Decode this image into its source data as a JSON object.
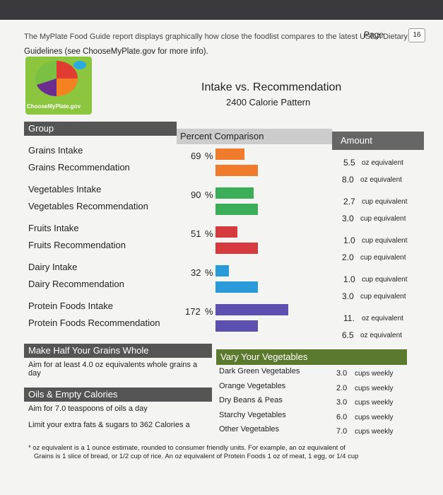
{
  "header": {
    "page_label": "Page",
    "page_number": "16",
    "intro": [
      "The MyPlate Food Guide report displays graphically how close the foodlist compares to the latest USDA Dietary",
      "Guidelines (see ChooseMyPlate.gov for more info)."
    ],
    "logo_text": "ChooseMyPlate.gov"
  },
  "report": {
    "title": "Intake vs. Recommendation",
    "subtitle": "2400 Calorie Pattern"
  },
  "table": {
    "columns": [
      "Group",
      "Percent Comparison",
      "Amount"
    ],
    "percent_unit": "%",
    "groups": [
      {
        "intake_label": "Grains Intake",
        "rec_label": "Grains Recommendation",
        "percent": 69,
        "intake_amount": "5.5",
        "intake_unit": "oz equivalent",
        "rec_amount": "8.0",
        "rec_unit": "oz equivalent",
        "color": "#f07b2c"
      },
      {
        "intake_label": "Vegetables Intake",
        "rec_label": "Vegetables Recommendation",
        "percent": 90,
        "intake_amount": "2.7",
        "intake_unit": "cup equivalent",
        "rec_amount": "3.0",
        "rec_unit": "cup equivalent",
        "color": "#3cae5a"
      },
      {
        "intake_label": "Fruits Intake",
        "rec_label": "Fruits Recommendation",
        "percent": 51,
        "intake_amount": "1.0",
        "intake_unit": "cup equivalent",
        "rec_amount": "2.0",
        "rec_unit": "cup equivalent",
        "color": "#d53a3f"
      },
      {
        "intake_label": "Dairy Intake",
        "rec_label": "Dairy Recommendation",
        "percent": 32,
        "intake_amount": "1.0",
        "intake_unit": "cup equivalent",
        "rec_amount": "3.0",
        "rec_unit": "cup equivalent",
        "color": "#2a9bd8"
      },
      {
        "intake_label": "Protein Foods Intake",
        "rec_label": "Protein Foods Recommendation",
        "percent": 172,
        "intake_amount": "11.",
        "intake_unit": "oz equivalent",
        "rec_amount": "6.5",
        "rec_unit": "oz equivalent",
        "color": "#5d4fb0"
      }
    ]
  },
  "grains_box": {
    "title": "Make Half Your Grains Whole",
    "text": "Aim for at least 4.0 oz equivalents whole grains a day"
  },
  "oils_box": {
    "title": "Oils & Empty Calories",
    "lines": [
      "Aim for 7.0 teaspoons of oils a day",
      "Limit your extra fats & sugars to 362 Calories a"
    ]
  },
  "veg_box": {
    "title": "Vary Your Vegetables",
    "unit": "cups weekly",
    "items": [
      {
        "name": "Dark Green Vegetables",
        "amount": "3.0"
      },
      {
        "name": "Orange Vegetables",
        "amount": "2.0"
      },
      {
        "name": "Dry Beans & Peas",
        "amount": "3.0"
      },
      {
        "name": "Starchy Vegetables",
        "amount": "6.0"
      },
      {
        "name": "Other Vegetables",
        "amount": "7.0"
      }
    ]
  },
  "footnote": [
    "* oz equivalent is a 1 ounce estimate, rounded to consumer friendly units. For example, an oz equivalent of",
    "Grains is 1 slice of bread, or 1/2 cup of rice. An oz equivalent of Protein Foods 1 oz of meat, 1 egg, or 1/4 cup"
  ]
}
